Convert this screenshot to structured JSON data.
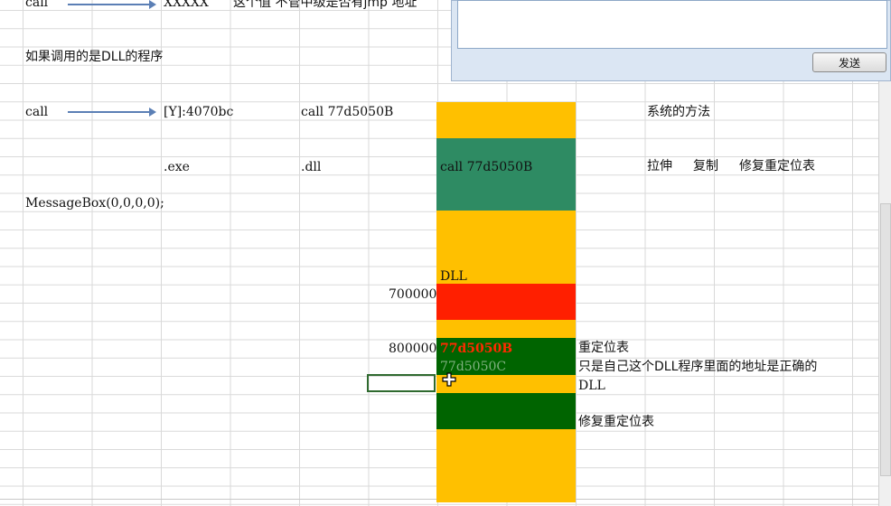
{
  "row1": {
    "a": "call",
    "b": "XXXXX",
    "note": "这个值 不管中级是否有jmp 地址"
  },
  "dll_note": "如果调用的是DLL的程序",
  "row2": {
    "a": "call",
    "b": "[Y]:4070bc",
    "c": "call 77d5050B"
  },
  "row3": {
    "exe": ".exe",
    "dll": ".dll"
  },
  "messagebox": "MessageBox(0,0,0,0);",
  "right_notes": {
    "system_method": "系统的方法",
    "stretch": "拉伸",
    "copy": "复制",
    "fix_reloc": "修复重定位表"
  },
  "memory": {
    "call_label": "call 77d5050B",
    "dll_label": "DLL",
    "addr_700000": "700000",
    "addr_800000": "800000",
    "red_text": "77d5050B",
    "addr_77d5050c": "77d5050C",
    "colors": {
      "yellow": "#FFC000",
      "teal": "#2E8B63",
      "red": "#FF1F00",
      "green": "#006400"
    }
  },
  "annotations": {
    "reloc_table": "重定位表",
    "only_correct": "只是自己这个DLL程序里面的地址是正确的",
    "dll": "DLL",
    "fix_reloc": "修复重定位表"
  },
  "chat": {
    "input_value": "",
    "send_label": "发送"
  }
}
